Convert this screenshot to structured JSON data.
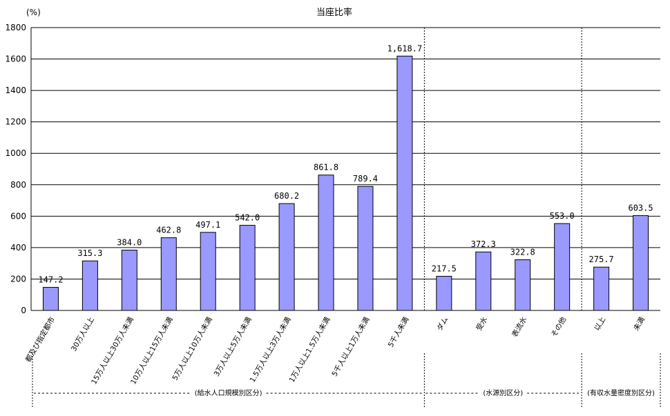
{
  "chart_data": {
    "type": "bar",
    "title": "当座比率",
    "ylabel": "(%)",
    "xlabel": "",
    "ylim": [
      0,
      1800
    ],
    "yticks": [
      0,
      200,
      400,
      600,
      800,
      1000,
      1200,
      1400,
      1600,
      1800
    ],
    "grid": true,
    "legend": "none",
    "bar_color": "#9999ff",
    "categories": [
      "都及び指定都市",
      "30万人以上",
      "15万人以上30万人未満",
      "10万人以上15万人未満",
      "5万人以上10万人未満",
      "3万人以上5万人未満",
      "1.5万人以上3万人未満",
      "1万人以上1.5万人未満",
      "5千人以上1万人未満",
      "5千人未満",
      "ダム",
      "受水",
      "表流水",
      "その他",
      "以上",
      "未満"
    ],
    "values": [
      147.2,
      315.3,
      384.0,
      462.8,
      497.1,
      542.0,
      680.2,
      861.8,
      789.4,
      1618.7,
      217.5,
      372.3,
      322.8,
      553.0,
      275.7,
      603.5
    ],
    "value_labels": [
      "147.2",
      "315.3",
      "384.0",
      "462.8",
      "497.1",
      "542.0",
      "680.2",
      "861.8",
      "789.4",
      "1,618.7",
      "217.5",
      "372.3",
      "322.8",
      "553.0",
      "275.7",
      "603.5"
    ],
    "groups": [
      {
        "label": "(給水人口規模別区分)",
        "start": 0,
        "end": 9
      },
      {
        "label": "(水源別区分)",
        "start": 10,
        "end": 13
      },
      {
        "label": "(有収水量密度別区分)",
        "start": 14,
        "end": 15
      }
    ]
  }
}
